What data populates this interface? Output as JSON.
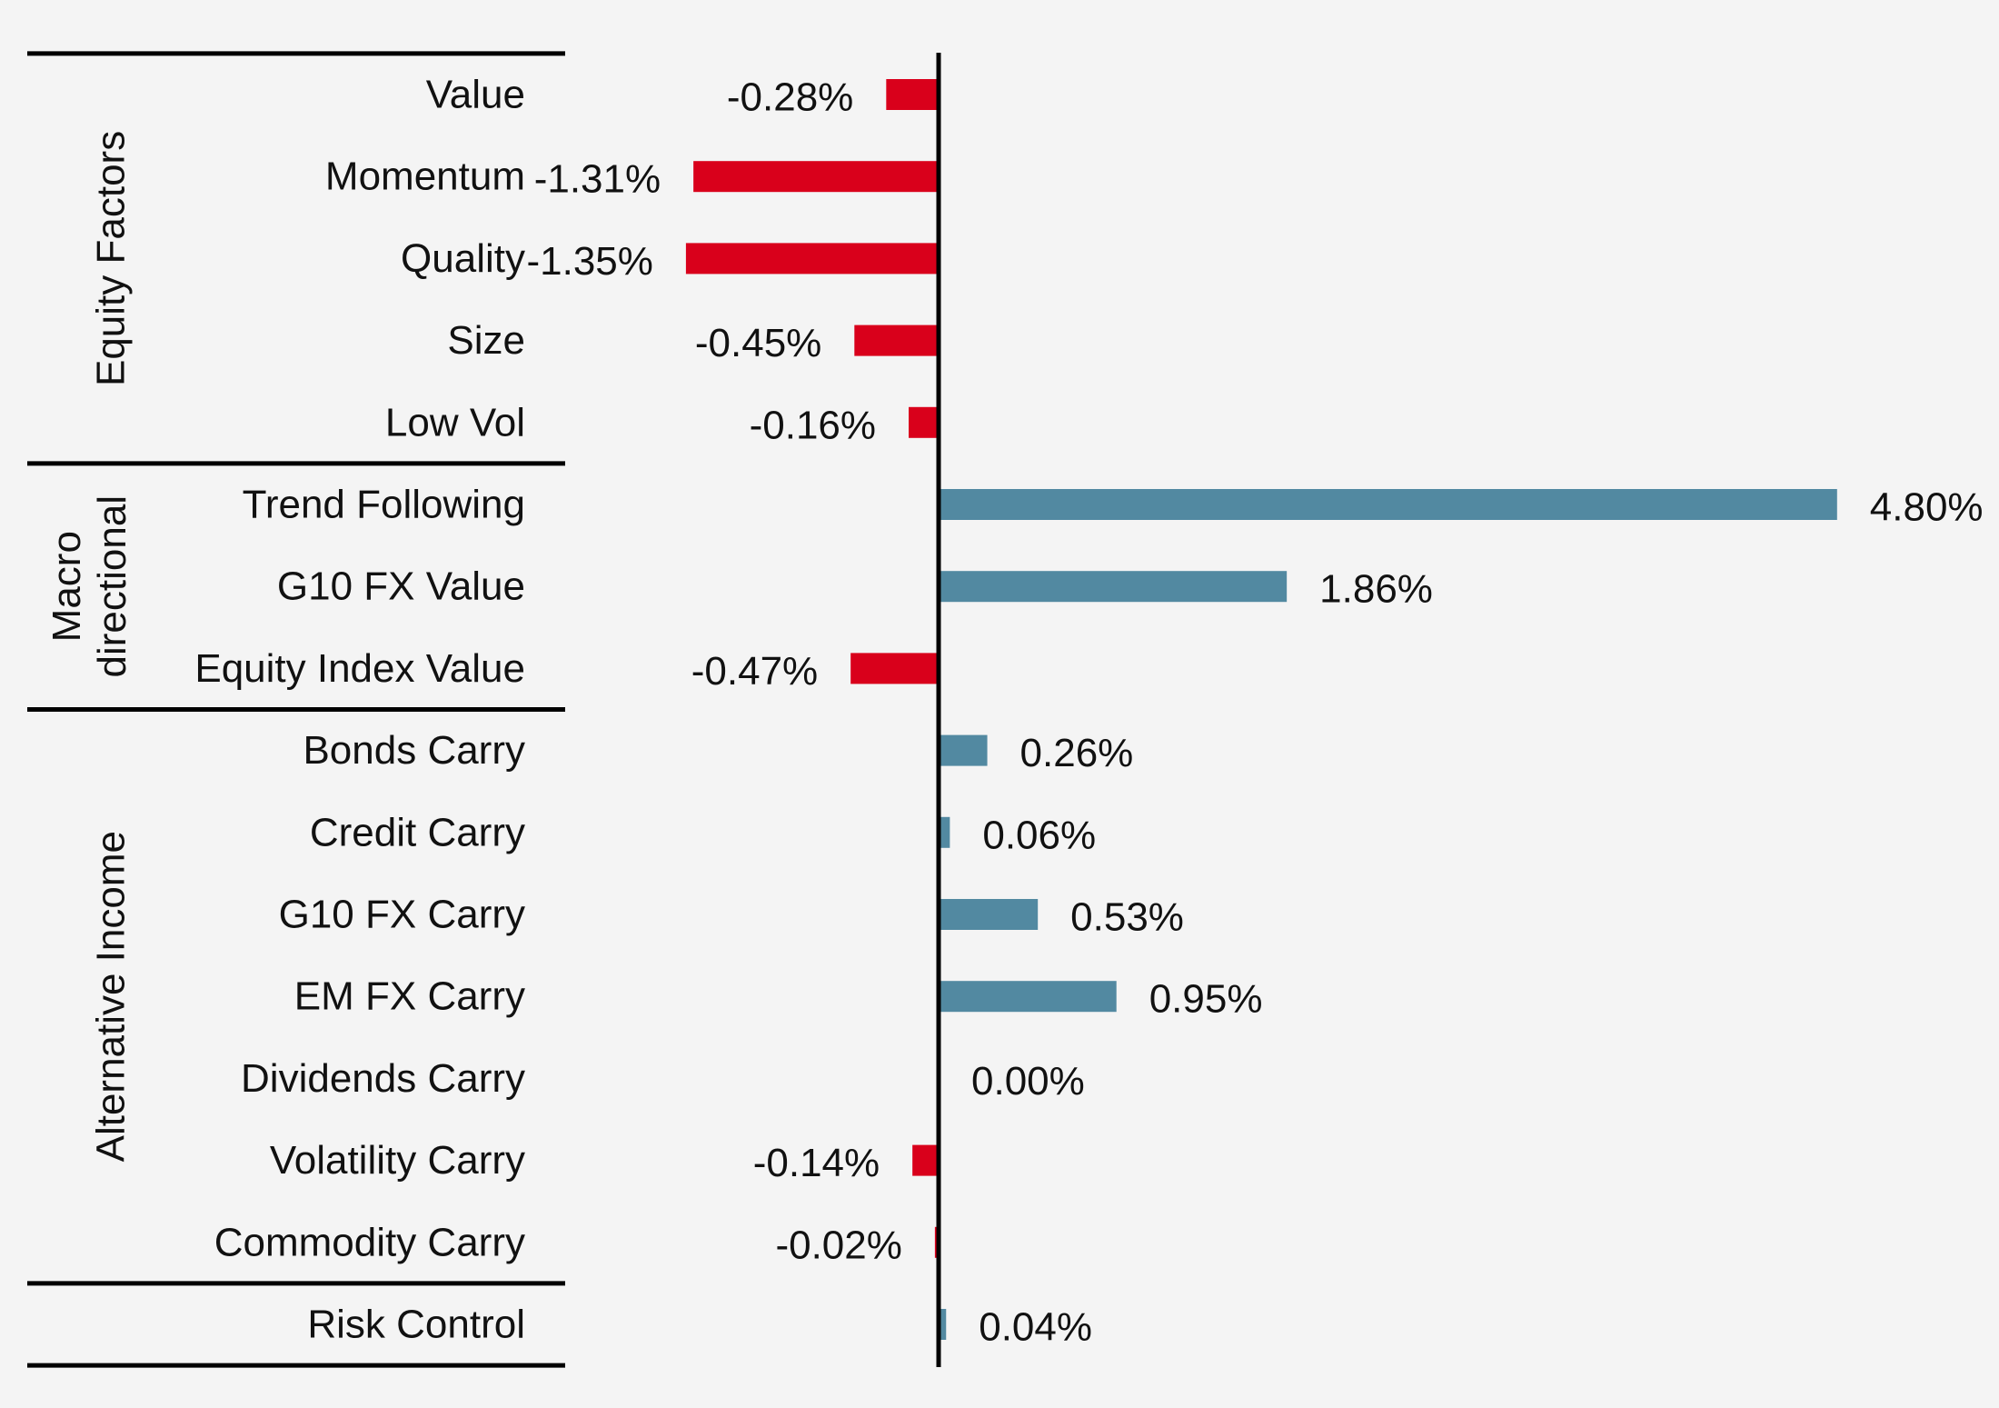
{
  "chart_data": {
    "type": "bar",
    "orientation": "horizontal",
    "title": "",
    "xlabel": "",
    "ylabel": "",
    "xlim": [
      -1.45,
      4.95
    ],
    "value_format": "percent_2dp",
    "colors": {
      "positive": "#5289a1",
      "negative": "#d9001b",
      "axis": "#000000"
    },
    "groups": [
      {
        "name": "Equity Factors",
        "categories": [
          "Value",
          "Momentum",
          "Quality",
          "Size",
          "Low Vol"
        ]
      },
      {
        "name": "Macro directional",
        "categories": [
          "Trend Following",
          "G10 FX Value",
          "Equity Index Value"
        ]
      },
      {
        "name": "Alternative Income",
        "categories": [
          "Bonds Carry",
          "Credit Carry",
          "G10 FX Carry",
          "EM FX Carry",
          "Dividends Carry",
          "Volatility Carry",
          "Commodity Carry"
        ]
      },
      {
        "name": "",
        "categories": [
          "Risk Control"
        ]
      }
    ],
    "categories": [
      "Value",
      "Momentum",
      "Quality",
      "Size",
      "Low Vol",
      "Trend Following",
      "G10 FX Value",
      "Equity Index Value",
      "Bonds Carry",
      "Credit Carry",
      "G10 FX Carry",
      "EM FX Carry",
      "Dividends Carry",
      "Volatility Carry",
      "Commodity Carry",
      "Risk Control"
    ],
    "values": [
      -0.28,
      -1.31,
      -1.35,
      -0.45,
      -0.16,
      4.8,
      1.86,
      -0.47,
      0.26,
      0.06,
      0.53,
      0.95,
      0.0,
      -0.14,
      -0.02,
      0.04
    ],
    "data_labels": [
      "-0.28%",
      "-1.31%",
      "-1.35%",
      "-0.45%",
      "-0.16%",
      "4.80%",
      "1.86%",
      "-0.47%",
      "0.26%",
      "0.06%",
      "0.53%",
      "0.95%",
      "0.00%",
      "-0.14%",
      "-0.02%",
      "0.04%"
    ],
    "grid": false,
    "legend": "none"
  }
}
